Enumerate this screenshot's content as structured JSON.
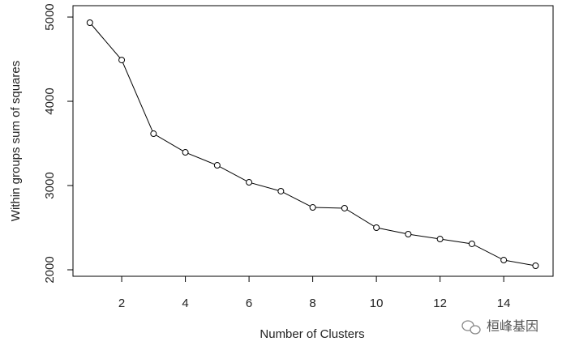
{
  "chart_data": {
    "type": "line",
    "xlabel": "Number of Clusters",
    "ylabel": "Within groups sum of squares",
    "x": [
      1,
      2,
      3,
      4,
      5,
      6,
      7,
      8,
      9,
      10,
      11,
      12,
      13,
      14,
      15
    ],
    "values": [
      4933,
      4490,
      3615,
      3394,
      3240,
      3038,
      2933,
      2740,
      2731,
      2500,
      2423,
      2365,
      2308,
      2115,
      2048
    ],
    "color": "#000000",
    "xlim": [
      0.47,
      15.55
    ],
    "xticks": [
      2,
      4,
      6,
      8,
      10,
      12,
      14
    ],
    "ylim": [
      1923,
      5135
    ],
    "yticks": [
      2000,
      3000,
      4000,
      5000
    ]
  },
  "watermark": "桓峰基因"
}
